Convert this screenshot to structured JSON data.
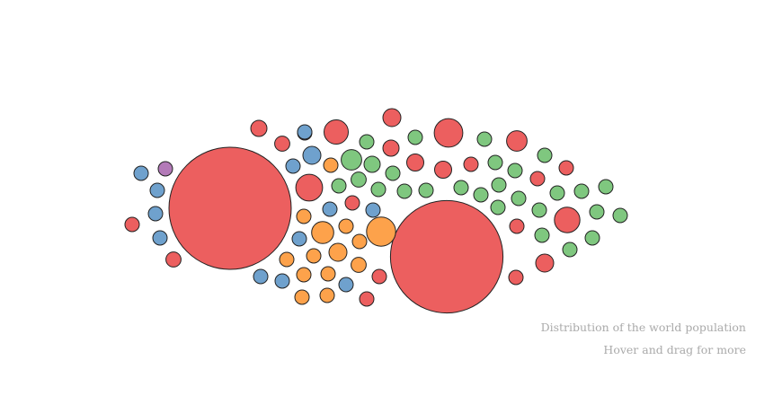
{
  "captions": {
    "title": "Distribution of the world population",
    "hint": "Hover and drag for more"
  },
  "colors": {
    "red": "#ec5f5f",
    "orange": "#fda24b",
    "green": "#7fc77f",
    "blue": "#6fa1cd",
    "purple": "#b37ab8"
  },
  "chart_data": {
    "type": "bubble",
    "title": "",
    "xlabel": "",
    "ylabel": "",
    "bubbles": [
      {
        "category": "red",
        "value": 4.6
      },
      {
        "category": "red",
        "value": 3.9
      },
      {
        "category": "red",
        "value": 0.25
      },
      {
        "category": "red",
        "value": 0.22
      },
      {
        "category": "red",
        "value": 0.2
      },
      {
        "category": "red",
        "value": 0.18
      },
      {
        "category": "red",
        "value": 0.13
      },
      {
        "category": "red",
        "value": 0.1
      },
      {
        "category": "red",
        "value": 0.1
      },
      {
        "category": "red",
        "value": 0.09
      },
      {
        "category": "red",
        "value": 0.09
      },
      {
        "category": "red",
        "value": 0.08
      },
      {
        "category": "red",
        "value": 0.08
      },
      {
        "category": "red",
        "value": 0.07
      },
      {
        "category": "red",
        "value": 0.07
      },
      {
        "category": "red",
        "value": 0.06
      },
      {
        "category": "red",
        "value": 0.06
      },
      {
        "category": "red",
        "value": 0.05
      },
      {
        "category": "red",
        "value": 0.05
      },
      {
        "category": "red",
        "value": 0.05
      },
      {
        "category": "red",
        "value": 0.05
      },
      {
        "category": "red",
        "value": 0.04
      },
      {
        "category": "red",
        "value": 0.04
      },
      {
        "category": "red",
        "value": 0.04
      },
      {
        "category": "red",
        "value": 0.04
      },
      {
        "category": "orange",
        "value": 0.26
      },
      {
        "category": "orange",
        "value": 0.15
      },
      {
        "category": "orange",
        "value": 0.1
      },
      {
        "category": "orange",
        "value": 0.07
      },
      {
        "category": "orange",
        "value": 0.06
      },
      {
        "category": "orange",
        "value": 0.05
      },
      {
        "category": "orange",
        "value": 0.05
      },
      {
        "category": "orange",
        "value": 0.05
      },
      {
        "category": "orange",
        "value": 0.04
      },
      {
        "category": "orange",
        "value": 0.04
      },
      {
        "category": "orange",
        "value": 0.04
      },
      {
        "category": "orange",
        "value": 0.04
      },
      {
        "category": "orange",
        "value": 0.04
      },
      {
        "category": "orange",
        "value": 0.04
      },
      {
        "category": "green",
        "value": 0.13
      },
      {
        "category": "green",
        "value": 0.08
      },
      {
        "category": "green",
        "value": 0.07
      },
      {
        "category": "green",
        "value": 0.06
      },
      {
        "category": "green",
        "value": 0.06
      },
      {
        "category": "green",
        "value": 0.05
      },
      {
        "category": "green",
        "value": 0.05
      },
      {
        "category": "green",
        "value": 0.05
      },
      {
        "category": "green",
        "value": 0.05
      },
      {
        "category": "green",
        "value": 0.05
      },
      {
        "category": "green",
        "value": 0.04
      },
      {
        "category": "green",
        "value": 0.04
      },
      {
        "category": "green",
        "value": 0.04
      },
      {
        "category": "green",
        "value": 0.04
      },
      {
        "category": "green",
        "value": 0.04
      },
      {
        "category": "green",
        "value": 0.04
      },
      {
        "category": "green",
        "value": 0.04
      },
      {
        "category": "green",
        "value": 0.04
      },
      {
        "category": "green",
        "value": 0.04
      },
      {
        "category": "green",
        "value": 0.04
      },
      {
        "category": "green",
        "value": 0.04
      },
      {
        "category": "green",
        "value": 0.04
      },
      {
        "category": "green",
        "value": 0.04
      },
      {
        "category": "green",
        "value": 0.04
      },
      {
        "category": "green",
        "value": 0.04
      },
      {
        "category": "green",
        "value": 0.04
      },
      {
        "category": "green",
        "value": 0.03
      },
      {
        "category": "green",
        "value": 0.03
      },
      {
        "category": "blue",
        "value": 0.1
      },
      {
        "category": "blue",
        "value": 0.06
      },
      {
        "category": "blue",
        "value": 0.06
      },
      {
        "category": "blue",
        "value": 0.05
      },
      {
        "category": "blue",
        "value": 0.05
      },
      {
        "category": "blue",
        "value": 0.05
      },
      {
        "category": "blue",
        "value": 0.04
      },
      {
        "category": "blue",
        "value": 0.04
      },
      {
        "category": "blue",
        "value": 0.04
      },
      {
        "category": "blue",
        "value": 0.04
      },
      {
        "category": "blue",
        "value": 0.04
      },
      {
        "category": "blue",
        "value": 0.04
      },
      {
        "category": "blue",
        "value": 0.04
      },
      {
        "category": "purple",
        "value": 0.04
      }
    ]
  }
}
